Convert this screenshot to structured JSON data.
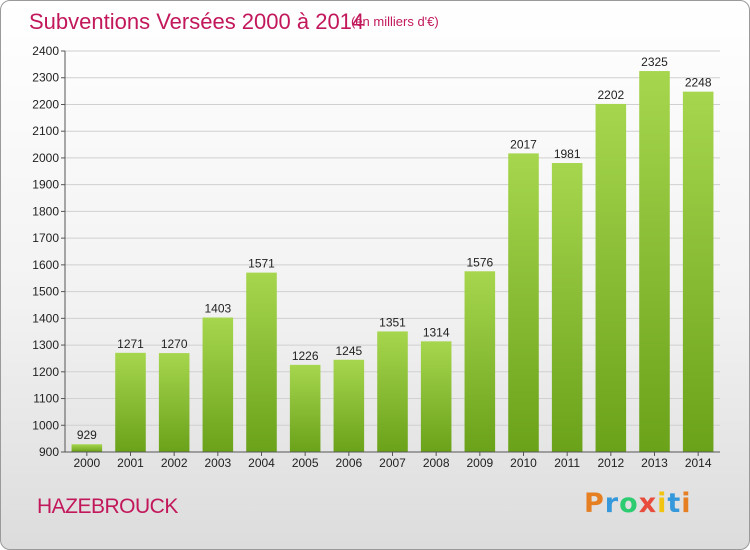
{
  "title": "Subventions Versées 2000 à 2014",
  "subtitle": "(en milliers d'€)",
  "place": "HAZEBROUCK",
  "logo": {
    "text": "Proxiti",
    "letters": [
      "P",
      "r",
      "o",
      "x",
      "i",
      "t",
      "i"
    ],
    "colors": [
      "#e67e22",
      "#3498db",
      "#2ecc71",
      "#e74c3c",
      "#f1c40f",
      "#3498db",
      "#e67e22"
    ]
  },
  "colors": {
    "bar_light": "#a6d64e",
    "bar_dark": "#6aa21a",
    "title": "#c2185b"
  },
  "chart_data": {
    "type": "bar",
    "categories": [
      "2000",
      "2001",
      "2002",
      "2003",
      "2004",
      "2005",
      "2006",
      "2007",
      "2008",
      "2009",
      "2010",
      "2011",
      "2012",
      "2013",
      "2014"
    ],
    "values": [
      929,
      1271,
      1270,
      1403,
      1571,
      1226,
      1245,
      1351,
      1314,
      1576,
      2017,
      1981,
      2202,
      2325,
      2248
    ],
    "title": "Subventions Versées 2000 à 2014",
    "ylim": [
      900,
      2400
    ],
    "yticks": [
      900,
      1000,
      1100,
      1200,
      1300,
      1400,
      1500,
      1600,
      1700,
      1800,
      1900,
      2000,
      2100,
      2200,
      2300,
      2400
    ],
    "grid": true
  }
}
